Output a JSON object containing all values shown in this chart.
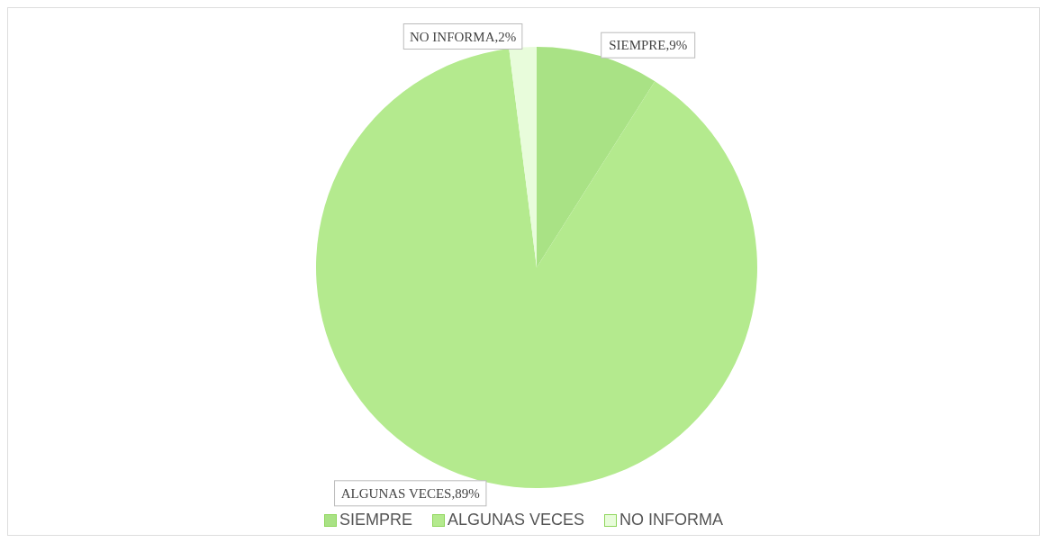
{
  "chart_data": {
    "type": "pie",
    "categories": [
      "SIEMPRE",
      "ALGUNAS VECES",
      "NO INFORMA"
    ],
    "values": [
      9,
      89,
      2
    ],
    "colors": [
      "#a9e285",
      "#b4ea8e",
      "#e8fcdb"
    ],
    "value_labels": [
      "SIEMPRE,9%",
      "ALGUNAS VECES,89%",
      "NO INFORMA,2%"
    ],
    "legend": "bottom"
  }
}
